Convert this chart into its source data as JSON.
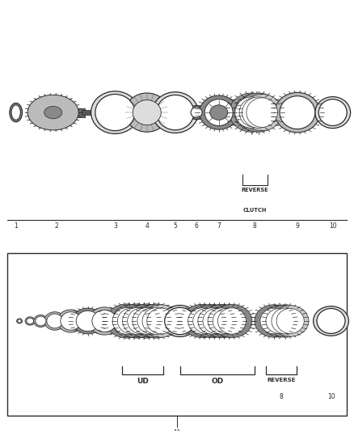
{
  "bg_color": "#ffffff",
  "line_color": "#2a2a2a",
  "dark_color": "#444444",
  "mid_gray": "#888888",
  "light_gray": "#bbbbbb",
  "very_light": "#dddddd",
  "reverse_clutch_text": [
    "REVERSE",
    "CLUTCH"
  ],
  "reverse_text": "REVERSE",
  "ud_text": "UD",
  "od_text": "OD",
  "fig_width": 4.38,
  "fig_height": 5.33,
  "dpi": 100
}
